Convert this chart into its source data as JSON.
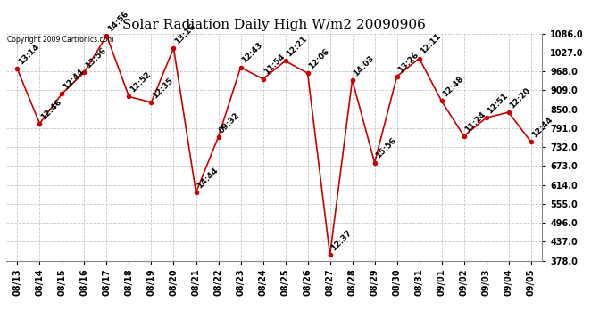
{
  "title": "Solar Radiation Daily High W/m2 20090906",
  "copyright": "Copyright 2009 Cartronics.com",
  "x_labels": [
    "08/13",
    "08/14",
    "08/15",
    "08/16",
    "08/17",
    "08/18",
    "08/19",
    "08/20",
    "08/21",
    "08/22",
    "08/23",
    "08/24",
    "08/25",
    "08/26",
    "08/27",
    "08/28",
    "08/29",
    "08/30",
    "08/31",
    "09/01",
    "09/02",
    "09/03",
    "09/04",
    "09/05"
  ],
  "y_values": [
    975,
    805,
    898,
    965,
    1079,
    889,
    871,
    1040,
    590,
    763,
    980,
    944,
    1000,
    962,
    395,
    941,
    683,
    952,
    1008,
    875,
    766,
    823,
    840,
    748
  ],
  "annotations": [
    "13:14",
    "12:46",
    "12:44",
    "13:56",
    "14:56",
    "12:52",
    "12:35",
    "13:16",
    "14:44",
    "09:32",
    "12:43",
    "11:54",
    "12:21",
    "12:06",
    "12:37",
    "14:03",
    "15:56",
    "13:26",
    "12:11",
    "12:48",
    "11:24",
    "12:51",
    "12:20",
    "12:44"
  ],
  "line_color": "#cc0000",
  "marker_color": "#cc0000",
  "background_color": "#ffffff",
  "grid_color": "#c8c8c8",
  "y_min": 378.0,
  "y_max": 1086.0,
  "y_ticks": [
    378.0,
    437.0,
    496.0,
    555.0,
    614.0,
    673.0,
    732.0,
    791.0,
    850.0,
    909.0,
    968.0,
    1027.0,
    1086.0
  ],
  "title_fontsize": 11,
  "tick_fontsize": 7,
  "annotation_fontsize": 6.5,
  "copyright_fontsize": 5.5
}
